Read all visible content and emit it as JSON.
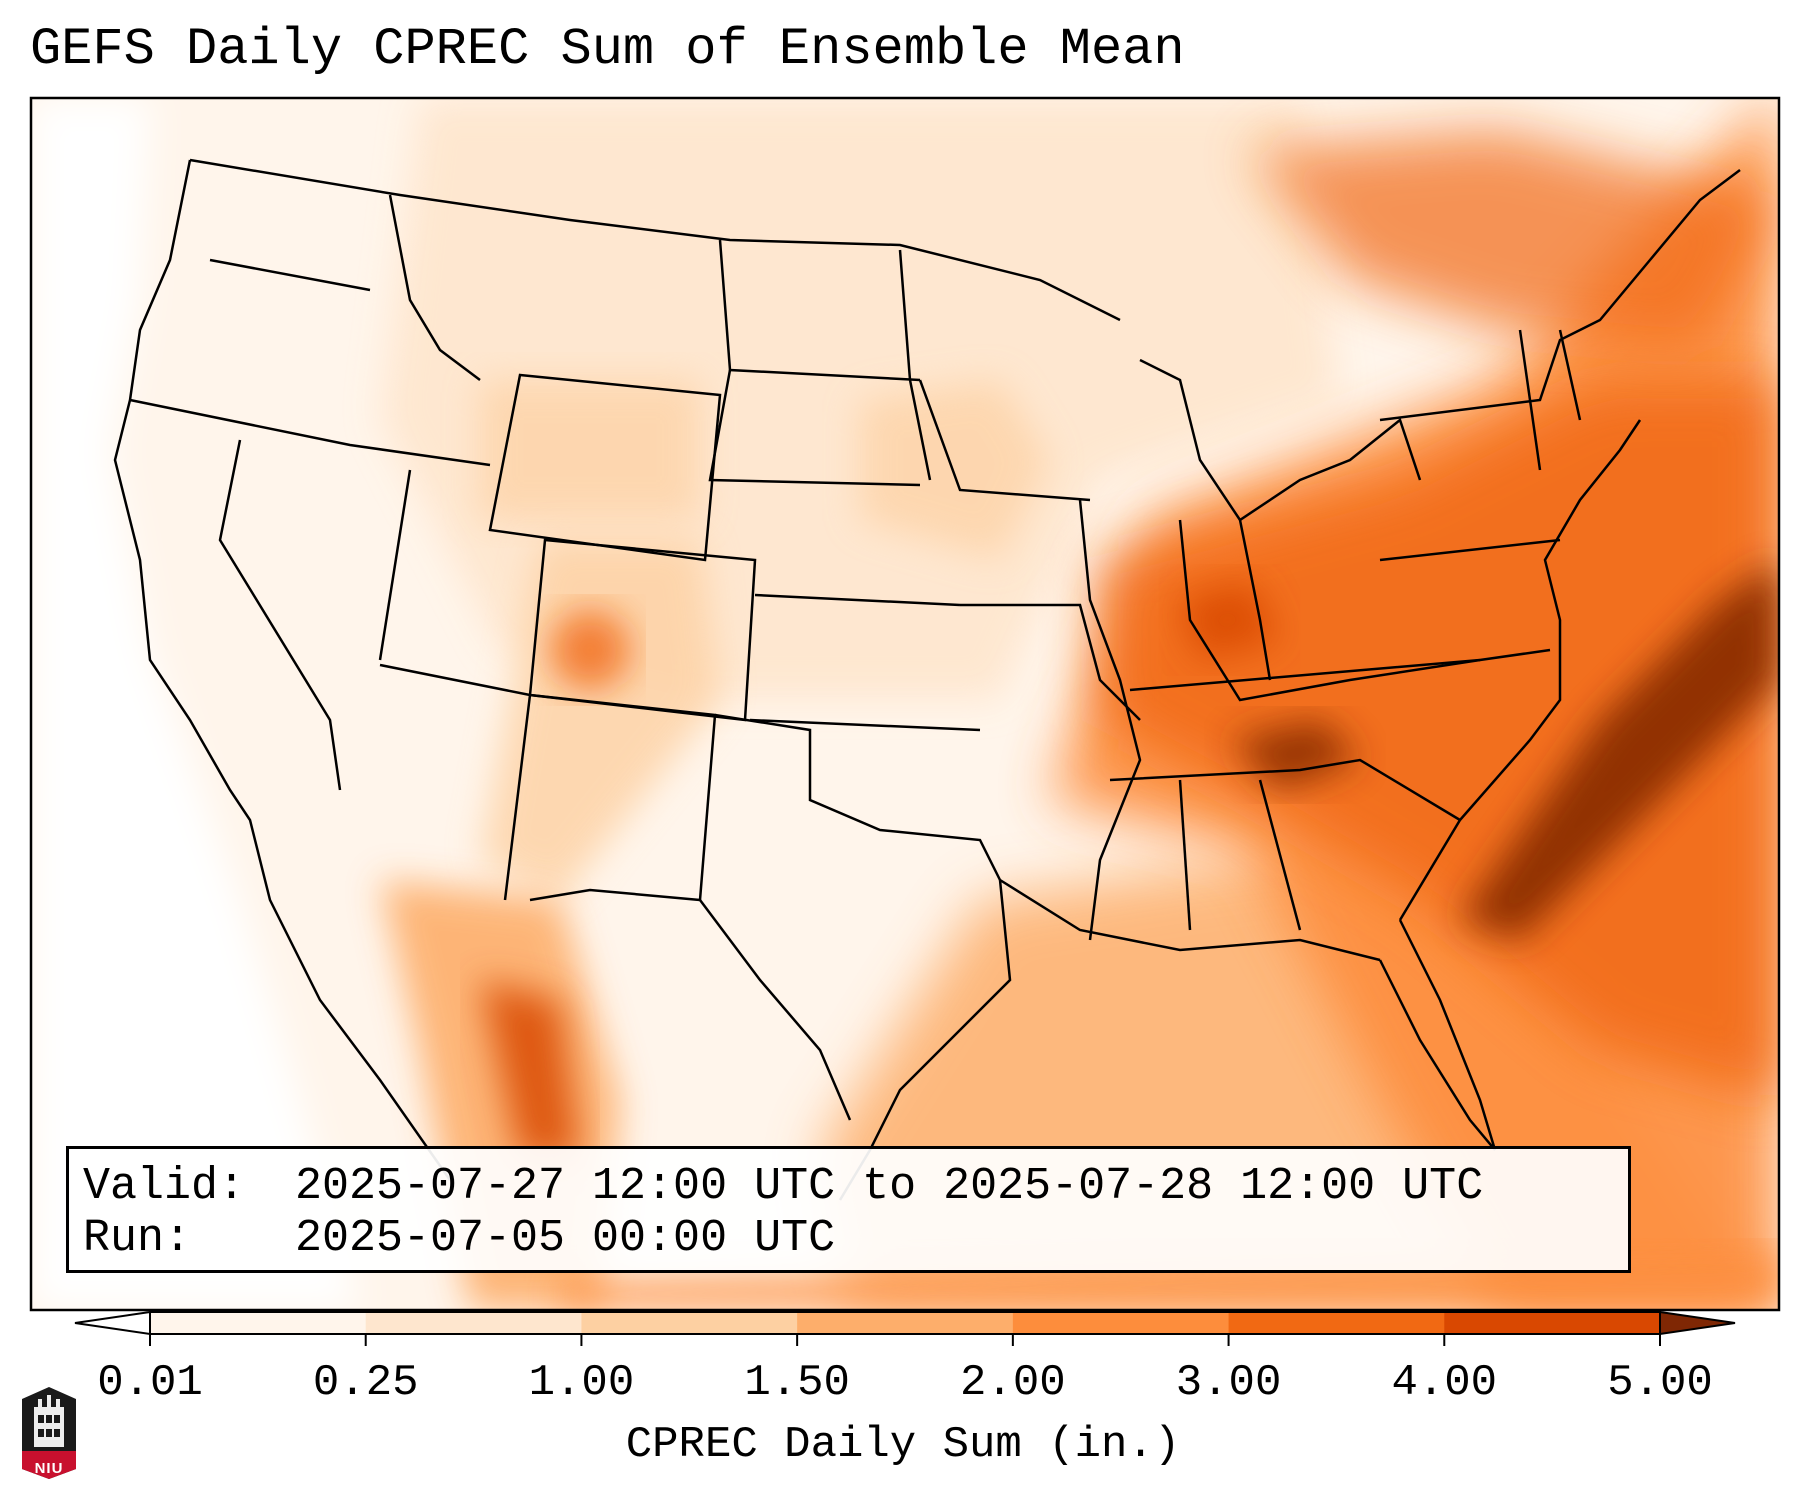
{
  "title": "GEFS Daily CPREC Sum of Ensemble Mean",
  "valid": {
    "key": "Valid:",
    "value": "2025-07-27 12:00 UTC to 2025-07-28 12:00 UTC"
  },
  "run": {
    "key": "Run:",
    "value": "2025-07-05 00:00 UTC"
  },
  "colorbar": {
    "label": "CPREC Daily Sum (in.)",
    "ticks": [
      "0.01",
      "0.25",
      "1.00",
      "1.50",
      "2.00",
      "3.00",
      "4.00",
      "5.00"
    ],
    "colors": [
      "#fff5eb",
      "#fee6ce",
      "#fdd0a2",
      "#fdae6b",
      "#fd8d3c",
      "#f16913",
      "#d94801",
      "#8c2d04"
    ],
    "under_color": "#ffffff",
    "over_color": "#7f2704"
  },
  "logo": {
    "text": "NIU",
    "color": "#c8102e"
  },
  "colors": {
    "background": "#fff5eb",
    "state_border": "#000000",
    "heavy": "#8c2d04"
  }
}
